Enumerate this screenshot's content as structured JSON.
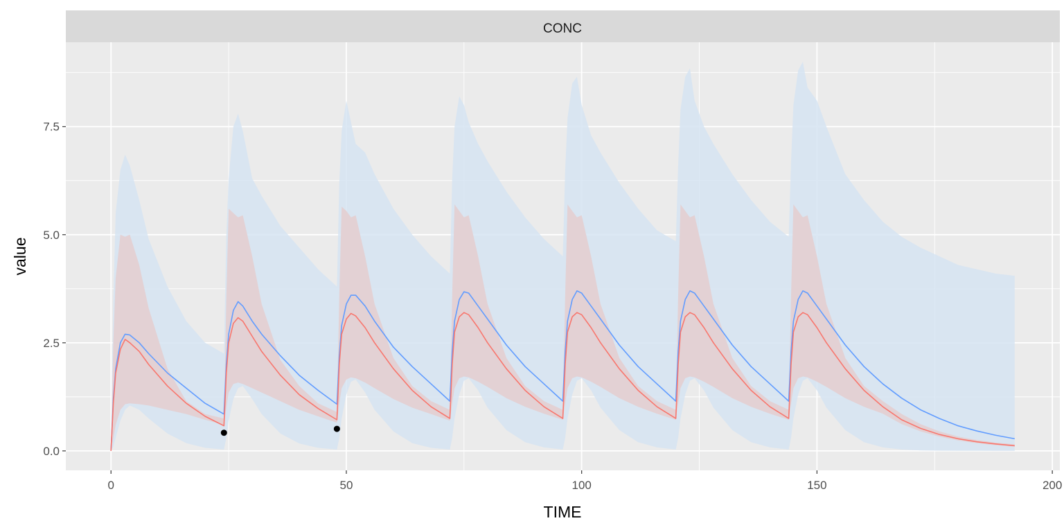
{
  "chart_data": {
    "type": "line",
    "facet_label": "CONC",
    "xlabel": "TIME",
    "ylabel": "value",
    "xlim": [
      -9.6,
      201.6
    ],
    "ylim": [
      -0.45,
      9.45
    ],
    "xticks": [
      0,
      50,
      100,
      150,
      200
    ],
    "xtick_labels": [
      "0",
      "50",
      "100",
      "150",
      "200"
    ],
    "yticks": [
      0,
      2.5,
      5,
      7.5
    ],
    "ytick_labels": [
      "0.0",
      "2.5",
      "5.0",
      "7.5"
    ],
    "grid": true,
    "legend": "none",
    "colors": {
      "panel": "#ebebeb",
      "strip": "#d9d9d9",
      "grid": "#ffffff",
      "blue_line": "#619cff",
      "red_line": "#f8766d",
      "blue_band": "#d6e4f2",
      "red_band": "#e5c9ca",
      "points": "#000000"
    },
    "series": [
      {
        "color": "blue",
        "x": [
          0,
          0.5,
          1,
          2,
          3,
          4,
          6,
          8,
          12,
          16,
          20,
          24,
          24.5,
          25,
          26,
          27,
          28,
          30,
          32,
          36,
          40,
          44,
          48,
          48.5,
          49,
          50,
          51,
          52,
          54,
          56,
          60,
          64,
          68,
          72,
          72.5,
          73,
          74,
          75,
          76,
          78,
          80,
          84,
          88,
          92,
          96,
          96.5,
          97,
          98,
          99,
          100,
          102,
          104,
          108,
          112,
          116,
          120,
          120.5,
          121,
          122,
          123,
          124,
          126,
          128,
          132,
          136,
          140,
          144,
          144.5,
          145,
          146,
          147,
          148,
          150,
          152,
          156,
          160,
          164,
          168,
          172,
          176,
          180,
          184,
          188,
          192
        ],
        "values": [
          0,
          1.2,
          1.9,
          2.5,
          2.7,
          2.68,
          2.5,
          2.25,
          1.8,
          1.45,
          1.1,
          0.85,
          2.0,
          2.7,
          3.25,
          3.45,
          3.35,
          3.0,
          2.7,
          2.2,
          1.75,
          1.4,
          1.08,
          2.2,
          2.9,
          3.4,
          3.6,
          3.6,
          3.35,
          3.0,
          2.4,
          1.95,
          1.55,
          1.15,
          2.3,
          3.0,
          3.5,
          3.68,
          3.65,
          3.35,
          3.05,
          2.45,
          1.95,
          1.55,
          1.15,
          2.3,
          3.0,
          3.5,
          3.7,
          3.65,
          3.35,
          3.05,
          2.45,
          1.95,
          1.55,
          1.15,
          2.3,
          3.0,
          3.5,
          3.7,
          3.65,
          3.35,
          3.05,
          2.45,
          1.95,
          1.55,
          1.15,
          2.3,
          3.0,
          3.5,
          3.7,
          3.65,
          3.35,
          3.05,
          2.45,
          1.95,
          1.55,
          1.22,
          0.95,
          0.75,
          0.58,
          0.46,
          0.36,
          0.28
        ]
      },
      {
        "color": "red",
        "x": [
          0,
          0.5,
          1,
          2,
          3,
          4,
          6,
          8,
          12,
          16,
          20,
          24,
          24.5,
          25,
          26,
          27,
          28,
          30,
          32,
          36,
          40,
          44,
          48,
          48.5,
          49,
          50,
          51,
          52,
          54,
          56,
          60,
          64,
          68,
          72,
          72.5,
          73,
          74,
          75,
          76,
          78,
          80,
          84,
          88,
          92,
          96,
          96.5,
          97,
          98,
          99,
          100,
          102,
          104,
          108,
          112,
          116,
          120,
          120.5,
          121,
          122,
          123,
          124,
          126,
          128,
          132,
          136,
          140,
          144,
          144.5,
          145,
          146,
          147,
          148,
          150,
          152,
          156,
          160,
          164,
          168,
          172,
          176,
          180,
          184,
          188,
          192
        ],
        "values": [
          0,
          1.1,
          1.8,
          2.35,
          2.58,
          2.5,
          2.3,
          2.0,
          1.5,
          1.1,
          0.8,
          0.58,
          1.8,
          2.5,
          2.95,
          3.08,
          3.0,
          2.65,
          2.3,
          1.75,
          1.3,
          0.98,
          0.72,
          2.0,
          2.7,
          3.05,
          3.18,
          3.12,
          2.85,
          2.5,
          1.9,
          1.4,
          1.02,
          0.75,
          2.0,
          2.75,
          3.1,
          3.2,
          3.15,
          2.85,
          2.5,
          1.9,
          1.4,
          1.02,
          0.75,
          2.0,
          2.75,
          3.1,
          3.2,
          3.15,
          2.85,
          2.5,
          1.9,
          1.4,
          1.02,
          0.75,
          2.0,
          2.75,
          3.1,
          3.2,
          3.15,
          2.85,
          2.5,
          1.9,
          1.4,
          1.02,
          0.75,
          2.0,
          2.75,
          3.1,
          3.2,
          3.15,
          2.85,
          2.5,
          1.9,
          1.4,
          1.02,
          0.72,
          0.52,
          0.38,
          0.28,
          0.21,
          0.16,
          0.12
        ]
      }
    ],
    "bands": [
      {
        "color": "blue",
        "x": [
          0,
          0.5,
          1,
          2,
          3,
          4,
          6,
          8,
          12,
          16,
          20,
          24,
          24.5,
          25,
          26,
          27,
          28,
          30,
          32,
          36,
          40,
          44,
          48,
          48.5,
          49,
          50,
          51,
          52,
          54,
          56,
          60,
          64,
          68,
          72,
          72.5,
          73,
          74,
          75,
          76,
          78,
          80,
          84,
          88,
          92,
          96,
          96.5,
          97,
          98,
          99,
          100,
          102,
          104,
          108,
          112,
          116,
          120,
          120.5,
          121,
          122,
          123,
          124,
          126,
          128,
          132,
          136,
          140,
          144,
          144.5,
          145,
          146,
          147,
          148,
          150,
          152,
          156,
          160,
          164,
          168,
          172,
          176,
          180,
          184,
          188,
          192
        ],
        "lower": [
          0,
          0.1,
          0.3,
          0.7,
          0.95,
          1.05,
          0.95,
          0.75,
          0.4,
          0.18,
          0.07,
          0.03,
          0.3,
          0.7,
          1.2,
          1.45,
          1.5,
          1.2,
          0.85,
          0.4,
          0.17,
          0.07,
          0.03,
          0.3,
          0.75,
          1.3,
          1.6,
          1.65,
          1.35,
          0.95,
          0.45,
          0.18,
          0.07,
          0.03,
          0.3,
          0.75,
          1.3,
          1.62,
          1.68,
          1.4,
          1.0,
          0.48,
          0.2,
          0.08,
          0.03,
          0.3,
          0.75,
          1.3,
          1.62,
          1.68,
          1.4,
          1.0,
          0.48,
          0.2,
          0.08,
          0.03,
          0.3,
          0.75,
          1.3,
          1.62,
          1.68,
          1.4,
          1.0,
          0.48,
          0.2,
          0.08,
          0.03,
          0.3,
          0.75,
          1.3,
          1.62,
          1.68,
          1.4,
          1.0,
          0.48,
          0.2,
          0.08,
          0.03,
          0.01,
          0.005,
          0.002,
          0.001,
          0,
          0
        ],
        "upper": [
          0,
          3.5,
          5.5,
          6.5,
          6.85,
          6.6,
          5.8,
          4.9,
          3.8,
          3.0,
          2.5,
          2.25,
          5.0,
          6.3,
          7.5,
          7.8,
          7.4,
          6.3,
          5.9,
          5.2,
          4.7,
          4.2,
          3.8,
          6.2,
          7.4,
          8.1,
          7.6,
          7.1,
          6.9,
          6.4,
          5.6,
          5.0,
          4.5,
          4.1,
          6.3,
          7.5,
          8.2,
          8.0,
          7.6,
          7.1,
          6.7,
          6.0,
          5.4,
          4.9,
          4.5,
          6.5,
          7.7,
          8.5,
          8.65,
          8.0,
          7.3,
          6.9,
          6.2,
          5.6,
          5.1,
          4.85,
          6.6,
          7.9,
          8.65,
          8.85,
          8.1,
          7.5,
          7.1,
          6.4,
          5.8,
          5.3,
          4.95,
          6.7,
          8.0,
          8.8,
          9.0,
          8.4,
          8.1,
          7.5,
          6.4,
          5.8,
          5.3,
          4.95,
          4.7,
          4.5,
          4.3,
          4.2,
          4.1,
          4.05
        ]
      },
      {
        "color": "red",
        "x": [
          0,
          0.5,
          1,
          2,
          3,
          4,
          6,
          8,
          12,
          16,
          20,
          24,
          24.5,
          25,
          26,
          27,
          28,
          30,
          32,
          36,
          40,
          44,
          48,
          48.5,
          49,
          50,
          51,
          52,
          54,
          56,
          60,
          64,
          68,
          72,
          72.5,
          73,
          74,
          75,
          76,
          78,
          80,
          84,
          88,
          92,
          96,
          96.5,
          97,
          98,
          99,
          100,
          102,
          104,
          108,
          112,
          116,
          120,
          120.5,
          121,
          122,
          123,
          124,
          126,
          128,
          132,
          136,
          140,
          144,
          144.5,
          145,
          146,
          147,
          148,
          150,
          152,
          156,
          160,
          164,
          168,
          172,
          176,
          180,
          184,
          188,
          192
        ],
        "lower": [
          0,
          0.3,
          0.6,
          0.95,
          1.08,
          1.1,
          1.08,
          1.05,
          0.95,
          0.85,
          0.72,
          0.6,
          1.0,
          1.35,
          1.55,
          1.58,
          1.55,
          1.45,
          1.35,
          1.15,
          0.95,
          0.8,
          0.65,
          1.1,
          1.45,
          1.65,
          1.7,
          1.68,
          1.58,
          1.45,
          1.2,
          1.0,
          0.85,
          0.7,
          1.1,
          1.45,
          1.68,
          1.72,
          1.7,
          1.6,
          1.48,
          1.22,
          1.02,
          0.86,
          0.72,
          1.1,
          1.45,
          1.68,
          1.72,
          1.7,
          1.6,
          1.48,
          1.22,
          1.02,
          0.86,
          0.72,
          1.1,
          1.45,
          1.68,
          1.72,
          1.7,
          1.6,
          1.48,
          1.22,
          1.02,
          0.86,
          0.72,
          1.1,
          1.45,
          1.68,
          1.72,
          1.7,
          1.6,
          1.48,
          1.22,
          1.02,
          0.86,
          0.62,
          0.45,
          0.33,
          0.24,
          0.18,
          0.13,
          0.1
        ],
        "upper": [
          0,
          2.5,
          4.0,
          5.0,
          4.95,
          5.0,
          4.3,
          3.3,
          1.9,
          1.15,
          0.85,
          0.75,
          3.5,
          5.6,
          5.5,
          5.4,
          5.45,
          4.5,
          3.4,
          2.1,
          1.5,
          1.1,
          0.9,
          3.6,
          5.65,
          5.55,
          5.4,
          5.45,
          4.5,
          3.4,
          2.15,
          1.5,
          1.15,
          0.95,
          3.6,
          5.7,
          5.55,
          5.4,
          5.45,
          4.5,
          3.4,
          2.15,
          1.5,
          1.15,
          0.95,
          3.6,
          5.7,
          5.55,
          5.4,
          5.45,
          4.5,
          3.4,
          2.15,
          1.5,
          1.15,
          0.95,
          3.6,
          5.7,
          5.55,
          5.4,
          5.45,
          4.5,
          3.4,
          2.15,
          1.5,
          1.15,
          0.95,
          3.6,
          5.7,
          5.55,
          5.4,
          5.45,
          4.5,
          3.4,
          2.15,
          1.5,
          1.15,
          0.85,
          0.62,
          0.45,
          0.33,
          0.25,
          0.19,
          0.15
        ]
      }
    ],
    "points": [
      {
        "x": 24,
        "y": 0.42
      },
      {
        "x": 48,
        "y": 0.51
      }
    ]
  }
}
